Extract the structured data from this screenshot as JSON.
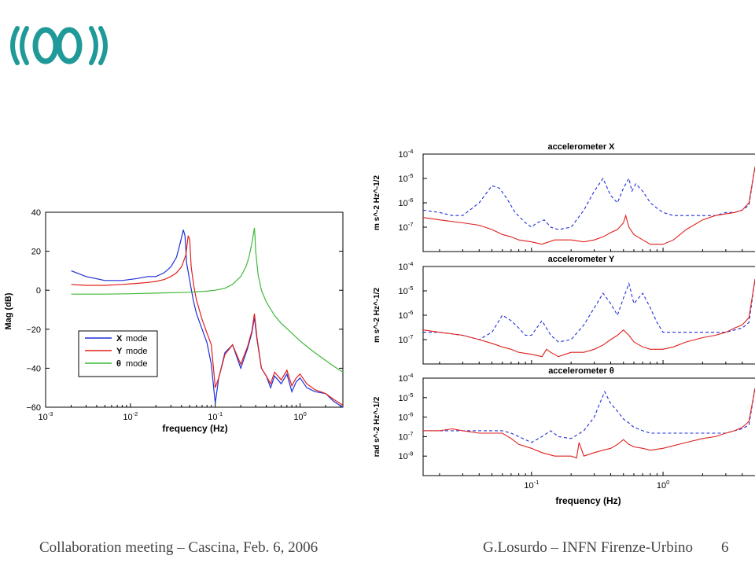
{
  "colors": {
    "logo": "#1f9a98",
    "blue": "#1f2fd8",
    "red": "#e0201c",
    "green": "#3fb83a",
    "footer_text": "#444444"
  },
  "footer": {
    "left": "Collaboration meeting – Cascina, Feb. 6, 2006",
    "right": "G.Losurdo – INFN Firenze-Urbino",
    "page": "6"
  },
  "chart_data": [
    {
      "type": "line",
      "title": "",
      "xlabel": "frequency (Hz)",
      "ylabel": "Mag (dB)",
      "x_scale": "log",
      "xlim": [
        0.001,
        3.2
      ],
      "ylim": [
        -60,
        40
      ],
      "x_ticks": [
        0.001,
        0.01,
        0.1,
        1
      ],
      "x_tick_labels": [
        "10",
        "10",
        "10",
        "10"
      ],
      "x_tick_exponents": [
        "-3",
        "-2",
        "-1",
        "0"
      ],
      "y_ticks": [
        -60,
        -40,
        -20,
        0,
        20,
        40
      ],
      "y_tick_labels": [
        "−60",
        "−40",
        "−20",
        "0",
        "20",
        "40"
      ],
      "legend": {
        "position": "lower-left",
        "entries": [
          {
            "symbol": "X",
            "text": "mode",
            "color": "blue"
          },
          {
            "symbol": "Y",
            "text": "mode",
            "color": "red"
          },
          {
            "symbol": "θ",
            "text": "mode",
            "color": "green"
          }
        ]
      },
      "series": [
        {
          "name": "X mode",
          "color": "blue",
          "x": [
            0.002,
            0.003,
            0.005,
            0.008,
            0.012,
            0.016,
            0.02,
            0.025,
            0.03,
            0.035,
            0.039,
            0.042,
            0.044,
            0.046,
            0.05,
            0.055,
            0.06,
            0.07,
            0.08,
            0.09,
            0.1,
            0.11,
            0.13,
            0.16,
            0.2,
            0.24,
            0.27,
            0.29,
            0.31,
            0.35,
            0.4,
            0.45,
            0.5,
            0.6,
            0.7,
            0.8,
            0.9,
            1.0,
            1.2,
            1.5,
            2.0,
            2.5,
            3.2
          ],
          "y": [
            10,
            7,
            5,
            5,
            6,
            7,
            7,
            9,
            12,
            17,
            25,
            31,
            28,
            14,
            5,
            -5,
            -12,
            -20,
            -27,
            -38,
            -58,
            -45,
            -32,
            -28,
            -40,
            -30,
            -22,
            -14,
            -25,
            -40,
            -44,
            -50,
            -44,
            -48,
            -43,
            -52,
            -47,
            -45,
            -50,
            -52,
            -53,
            -57,
            -60
          ]
        },
        {
          "name": "Y mode",
          "color": "red",
          "x": [
            0.002,
            0.003,
            0.005,
            0.008,
            0.012,
            0.016,
            0.02,
            0.025,
            0.03,
            0.035,
            0.04,
            0.045,
            0.048,
            0.05,
            0.052,
            0.056,
            0.06,
            0.07,
            0.08,
            0.09,
            0.1,
            0.11,
            0.13,
            0.16,
            0.2,
            0.24,
            0.27,
            0.29,
            0.31,
            0.35,
            0.4,
            0.45,
            0.5,
            0.6,
            0.7,
            0.8,
            0.9,
            1.0,
            1.2,
            1.5,
            2.0,
            2.5,
            3.2
          ],
          "y": [
            3,
            2.5,
            2.5,
            3,
            3.5,
            4,
            4.5,
            5.5,
            7,
            9,
            12,
            18,
            28,
            26,
            12,
            2,
            -5,
            -15,
            -22,
            -28,
            -50,
            -45,
            -33,
            -28,
            -38,
            -29,
            -21,
            -12,
            -24,
            -40,
            -44,
            -48,
            -42,
            -46,
            -41,
            -49,
            -45,
            -43,
            -48,
            -51,
            -53,
            -56,
            -59
          ]
        },
        {
          "name": "θ mode",
          "color": "green",
          "x": [
            0.002,
            0.005,
            0.01,
            0.02,
            0.05,
            0.08,
            0.1,
            0.13,
            0.16,
            0.2,
            0.23,
            0.25,
            0.27,
            0.285,
            0.29,
            0.295,
            0.3,
            0.32,
            0.35,
            0.4,
            0.5,
            0.6,
            0.8,
            1.0,
            1.3,
            1.6,
            2.0,
            2.5,
            3.2
          ],
          "y": [
            -2,
            -2,
            -1.8,
            -1.5,
            -1,
            -0.5,
            0,
            1,
            3,
            7,
            12,
            17,
            24,
            30,
            32,
            27,
            20,
            8,
            0,
            -6,
            -13,
            -17,
            -22,
            -26,
            -30,
            -33,
            -36,
            -39,
            -42
          ]
        }
      ]
    },
    {
      "type": "line",
      "title": "accelerometer X",
      "xlabel": "",
      "ylabel": "m s^-2 Hz^-1/2",
      "x_scale": "log",
      "y_scale": "log",
      "xlim": [
        0.015,
        5
      ],
      "ylim": [
        1e-08,
        0.0001
      ],
      "y_ticks": [
        1e-07,
        1e-06,
        1e-05,
        0.0001
      ],
      "y_tick_labels": [
        "10",
        "10",
        "10",
        "10"
      ],
      "y_tick_exponents": [
        "-7",
        "-6",
        "-5",
        "-4"
      ],
      "series": [
        {
          "color": "blue",
          "dash": true,
          "x": [
            0.015,
            0.02,
            0.025,
            0.03,
            0.04,
            0.05,
            0.057,
            0.065,
            0.075,
            0.09,
            0.1,
            0.11,
            0.125,
            0.14,
            0.16,
            0.2,
            0.25,
            0.3,
            0.35,
            0.37,
            0.4,
            0.45,
            0.5,
            0.55,
            0.58,
            0.62,
            0.7,
            0.8,
            0.9,
            1.0,
            1.2,
            1.5,
            2.0,
            2.5,
            3.0,
            3.5,
            4.0,
            4.5,
            5.0
          ],
          "y": [
            5e-07,
            4e-07,
            3e-07,
            3e-07,
            1e-06,
            5e-06,
            4e-06,
            1.5e-06,
            4e-07,
            1.5e-07,
            1e-07,
            1.5e-07,
            2e-07,
            1e-07,
            8e-08,
            1e-07,
            5e-07,
            3e-06,
            1e-05,
            5e-06,
            2e-06,
            1e-06,
            4e-06,
            1e-05,
            3e-06,
            6e-06,
            3e-06,
            1e-06,
            6e-07,
            4e-07,
            3e-07,
            3e-07,
            3e-07,
            3e-07,
            4e-07,
            4e-07,
            5e-07,
            8e-07,
            3e-05
          ]
        },
        {
          "color": "red",
          "x": [
            0.015,
            0.02,
            0.03,
            0.04,
            0.05,
            0.06,
            0.07,
            0.08,
            0.1,
            0.12,
            0.15,
            0.2,
            0.25,
            0.3,
            0.35,
            0.4,
            0.45,
            0.5,
            0.52,
            0.55,
            0.6,
            0.7,
            0.8,
            1.0,
            1.2,
            1.5,
            2.0,
            2.5,
            3.0,
            3.5,
            4.0,
            4.5,
            5.0
          ],
          "y": [
            2.5e-07,
            2e-07,
            1.5e-07,
            1.2e-07,
            8e-08,
            5e-08,
            4e-08,
            3e-08,
            2.5e-08,
            2e-08,
            3e-08,
            3e-08,
            2.5e-08,
            3e-08,
            4e-08,
            6e-08,
            8e-08,
            1.5e-07,
            3e-07,
            1e-07,
            5e-08,
            3e-08,
            2e-08,
            2e-08,
            3e-08,
            8e-08,
            2e-07,
            3e-07,
            3.5e-07,
            4e-07,
            5e-07,
            1e-06,
            3e-05
          ]
        }
      ]
    },
    {
      "type": "line",
      "title": "accelerometer Y",
      "xlabel": "",
      "ylabel": "m s^-2 Hz^-1/2",
      "x_scale": "log",
      "y_scale": "log",
      "xlim": [
        0.015,
        5
      ],
      "ylim": [
        1e-08,
        0.0001
      ],
      "y_ticks": [
        1e-07,
        1e-06,
        1e-05,
        0.0001
      ],
      "y_tick_labels": [
        "10",
        "10",
        "10",
        "10"
      ],
      "y_tick_exponents": [
        "-7",
        "-6",
        "-5",
        "-4"
      ],
      "series": [
        {
          "color": "blue",
          "dash": true,
          "x": [
            0.015,
            0.02,
            0.03,
            0.04,
            0.05,
            0.06,
            0.07,
            0.08,
            0.09,
            0.1,
            0.12,
            0.14,
            0.16,
            0.2,
            0.25,
            0.3,
            0.35,
            0.4,
            0.45,
            0.5,
            0.55,
            0.6,
            0.7,
            0.8,
            0.9,
            1.0,
            1.2,
            1.5,
            2.0,
            2.5,
            3.0,
            3.5,
            4.0,
            4.5,
            5.0
          ],
          "y": [
            2e-07,
            2e-07,
            1.5e-07,
            1e-07,
            2e-07,
            1e-06,
            6e-07,
            3e-07,
            1.5e-07,
            1.5e-07,
            6e-07,
            1.5e-07,
            8e-08,
            1e-07,
            4e-07,
            2e-06,
            8e-06,
            3e-06,
            1e-06,
            5e-06,
            2e-05,
            3e-06,
            8e-06,
            2e-06,
            5e-07,
            2e-07,
            2e-07,
            2e-07,
            2e-07,
            2e-07,
            2e-07,
            2.5e-07,
            3e-07,
            5e-07,
            3e-05
          ]
        },
        {
          "color": "red",
          "x": [
            0.015,
            0.02,
            0.03,
            0.04,
            0.05,
            0.06,
            0.07,
            0.08,
            0.1,
            0.12,
            0.13,
            0.14,
            0.16,
            0.2,
            0.25,
            0.3,
            0.35,
            0.4,
            0.45,
            0.5,
            0.55,
            0.6,
            0.7,
            0.8,
            1.0,
            1.2,
            1.5,
            2.0,
            2.5,
            3.0,
            3.5,
            4.0,
            4.5,
            5.0
          ],
          "y": [
            2.5e-07,
            2e-07,
            1.5e-07,
            1e-07,
            7e-08,
            5e-08,
            4e-08,
            3e-08,
            2.5e-08,
            2e-08,
            4e-08,
            3e-08,
            2e-08,
            3e-08,
            3e-08,
            4e-08,
            6e-08,
            1e-07,
            1.5e-07,
            2.5e-07,
            1.5e-07,
            8e-08,
            5e-08,
            4e-08,
            4e-08,
            5e-08,
            8e-08,
            1.2e-07,
            1.5e-07,
            2e-07,
            3e-07,
            4e-07,
            8e-07,
            3e-05
          ]
        }
      ]
    },
    {
      "type": "line",
      "title": "accelerometer θ",
      "xlabel": "frequency (Hz)",
      "ylabel": "rad s^-2 Hz^-1/2",
      "x_scale": "log",
      "y_scale": "log",
      "xlim": [
        0.015,
        5
      ],
      "ylim": [
        1e-09,
        0.0001
      ],
      "x_ticks": [
        0.1,
        1
      ],
      "x_tick_labels": [
        "10",
        "10"
      ],
      "x_tick_exponents": [
        "-1",
        "0"
      ],
      "y_ticks": [
        1e-08,
        1e-07,
        1e-06,
        1e-05,
        0.0001
      ],
      "y_tick_labels": [
        "10",
        "10",
        "10",
        "10",
        "10"
      ],
      "y_tick_exponents": [
        "-8",
        "-7",
        "-6",
        "-5",
        "-4"
      ],
      "series": [
        {
          "color": "blue",
          "dash": true,
          "x": [
            0.015,
            0.02,
            0.03,
            0.04,
            0.05,
            0.06,
            0.07,
            0.08,
            0.1,
            0.12,
            0.14,
            0.16,
            0.2,
            0.25,
            0.3,
            0.33,
            0.36,
            0.4,
            0.45,
            0.5,
            0.55,
            0.6,
            0.7,
            0.8,
            1.0,
            1.5,
            2.0,
            2.5,
            3.0,
            3.5,
            4.0,
            4.5,
            5.0
          ],
          "y": [
            2e-07,
            2e-07,
            2e-07,
            2e-07,
            2e-07,
            2e-07,
            1.5e-07,
            1e-07,
            5e-08,
            1e-07,
            2e-07,
            1e-07,
            8e-08,
            2e-07,
            1e-06,
            5e-06,
            2e-05,
            5e-06,
            2e-06,
            8e-07,
            5e-07,
            3e-07,
            2e-07,
            1.5e-07,
            1.5e-07,
            1.5e-07,
            1.5e-07,
            1.5e-07,
            1.5e-07,
            2e-07,
            2.5e-07,
            4e-07,
            3e-05
          ]
        },
        {
          "color": "red",
          "x": [
            0.015,
            0.02,
            0.025,
            0.03,
            0.04,
            0.05,
            0.06,
            0.07,
            0.08,
            0.1,
            0.12,
            0.15,
            0.2,
            0.22,
            0.23,
            0.25,
            0.3,
            0.35,
            0.4,
            0.45,
            0.5,
            0.55,
            0.6,
            0.7,
            0.8,
            1.0,
            1.5,
            2.0,
            2.5,
            3.0,
            3.5,
            4.0,
            4.5,
            5.0
          ],
          "y": [
            2e-07,
            2e-07,
            2.5e-07,
            2e-07,
            1.5e-07,
            1.5e-07,
            1.5e-07,
            8e-08,
            4e-08,
            2.5e-08,
            1.5e-08,
            1e-08,
            1e-08,
            8e-09,
            5e-08,
            1e-08,
            1.5e-08,
            2e-08,
            2.5e-08,
            4e-08,
            7e-08,
            4e-08,
            3e-08,
            2.5e-08,
            2e-08,
            2.5e-08,
            5e-08,
            8e-08,
            1e-07,
            1.5e-07,
            2e-07,
            3e-07,
            6e-07,
            3e-05
          ]
        }
      ]
    }
  ]
}
